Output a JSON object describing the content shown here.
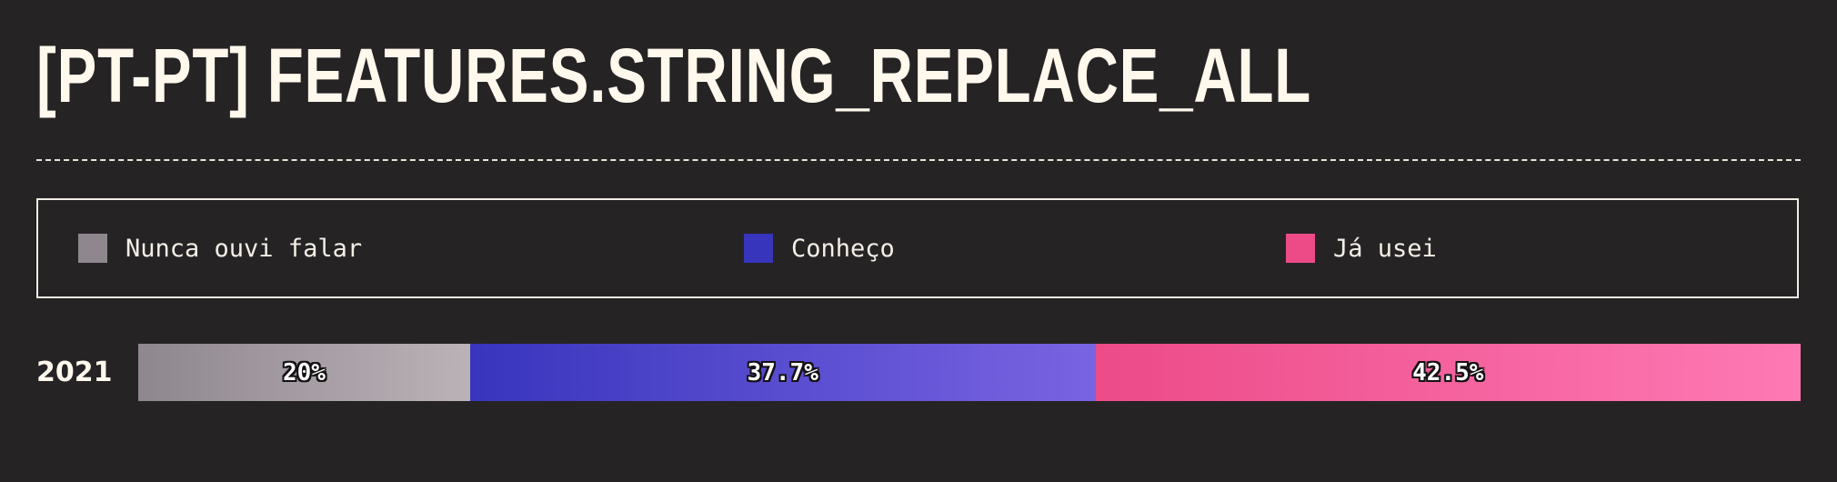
{
  "title": "[PT-PT] FEATURES.STRING_REPLACE_ALL",
  "chart_data": {
    "type": "bar",
    "stacked": true,
    "orientation": "horizontal",
    "title": "[PT-PT] FEATURES.STRING_REPLACE_ALL",
    "categories": [
      "2021"
    ],
    "series": [
      {
        "name": "Nunca ouvi falar",
        "values": [
          20
        ],
        "label": "20%",
        "color": "#8f878e",
        "color_end": "#bab2b7"
      },
      {
        "name": "Conheço",
        "values": [
          37.7
        ],
        "label": "37.7%",
        "color": "#3835bd",
        "color_end": "#7964e2"
      },
      {
        "name": "Já usei",
        "values": [
          42.5
        ],
        "label": "42.5%",
        "color": "#ec4b88",
        "color_end": "#fe79b4"
      }
    ],
    "legend_position": "top",
    "units": "%"
  }
}
